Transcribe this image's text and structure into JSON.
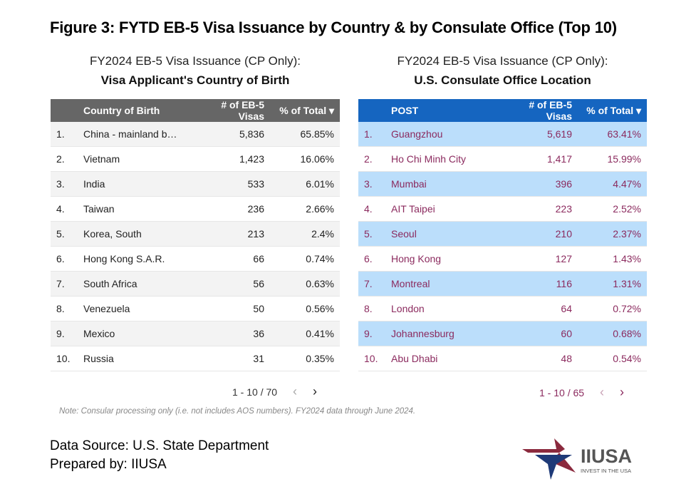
{
  "title": "Figure 3: FYTD EB-5 Visa Issuance by Country & by Consulate Office (Top 10)",
  "left": {
    "subtitle": "FY2024 EB-5 Visa Issuance (CP Only):",
    "subtitle_bold": "Visa Applicant's Country of Birth",
    "columns": [
      "",
      "Country of Birth",
      "# of EB-5 Visas",
      "% of Total"
    ],
    "sort_icon": "caret-down-icon",
    "rows": [
      [
        "1.",
        "China - mainland b…",
        "5,836",
        "65.85%"
      ],
      [
        "2.",
        "Vietnam",
        "1,423",
        "16.06%"
      ],
      [
        "3.",
        "India",
        "533",
        "6.01%"
      ],
      [
        "4.",
        "Taiwan",
        "236",
        "2.66%"
      ],
      [
        "5.",
        "Korea, South",
        "213",
        "2.4%"
      ],
      [
        "6.",
        "Hong Kong S.A.R.",
        "66",
        "0.74%"
      ],
      [
        "7.",
        "South Africa",
        "56",
        "0.63%"
      ],
      [
        "8.",
        "Venezuela",
        "50",
        "0.56%"
      ],
      [
        "9.",
        "Mexico",
        "36",
        "0.41%"
      ],
      [
        "10.",
        "Russia",
        "31",
        "0.35%"
      ]
    ],
    "pagination": "1 - 10 / 70"
  },
  "right": {
    "subtitle": "FY2024 EB-5 Visa Issuance (CP Only):",
    "subtitle_bold": "U.S. Consulate Office Location",
    "columns": [
      "",
      "POST",
      "# of EB-5 Visas",
      "% of Total"
    ],
    "sort_icon": "caret-down-icon",
    "rows": [
      [
        "1.",
        "Guangzhou",
        "5,619",
        "63.41%"
      ],
      [
        "2.",
        "Ho Chi Minh City",
        "1,417",
        "15.99%"
      ],
      [
        "3.",
        "Mumbai",
        "396",
        "4.47%"
      ],
      [
        "4.",
        "AIT Taipei",
        "223",
        "2.52%"
      ],
      [
        "5.",
        "Seoul",
        "210",
        "2.37%"
      ],
      [
        "6.",
        "Hong Kong",
        "127",
        "1.43%"
      ],
      [
        "7.",
        "Montreal",
        "116",
        "1.31%"
      ],
      [
        "8.",
        "London",
        "64",
        "0.72%"
      ],
      [
        "9.",
        "Johannesburg",
        "60",
        "0.68%"
      ],
      [
        "10.",
        "Abu Dhabi",
        "48",
        "0.54%"
      ]
    ],
    "pagination": "1 - 10 / 65"
  },
  "colors": {
    "left_header": "#666666",
    "right_header": "#1565c0",
    "right_highlight": "#bbdefb",
    "right_text": "#8b2a5e"
  },
  "note": "Note: Consular processing only (i.e. not includes AOS numbers). FY2024 data through June 2024.",
  "source": "Data Source: U.S. State Department",
  "prepared": "Prepared by: IIUSA",
  "logo": {
    "name": "IIUSA",
    "tagline": "INVEST IN THE USA"
  }
}
